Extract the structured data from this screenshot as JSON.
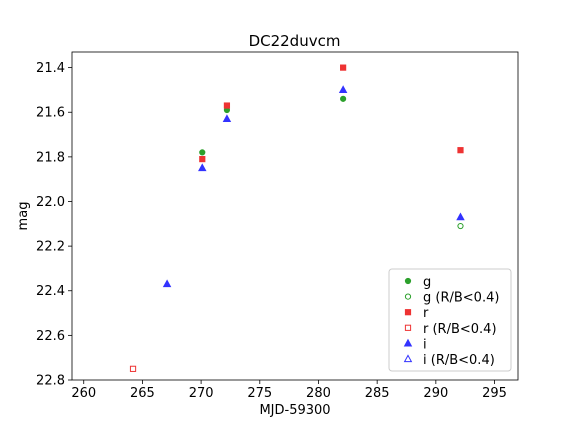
{
  "chart_data": {
    "type": "scatter",
    "title": "DC22duvcm",
    "xlabel": "MJD-59300",
    "ylabel": "mag",
    "xlim": [
      259,
      297
    ],
    "ylim": [
      22.8,
      21.33
    ],
    "y_inverted": true,
    "xticks": [
      260,
      265,
      270,
      275,
      280,
      285,
      290,
      295
    ],
    "yticks": [
      21.4,
      21.6,
      21.8,
      22.0,
      22.2,
      22.4,
      22.6,
      22.8
    ],
    "xtick_labels": [
      "260",
      "265",
      "270",
      "275",
      "280",
      "285",
      "290",
      "295"
    ],
    "ytick_labels": [
      "21.4",
      "21.6",
      "21.8",
      "22.0",
      "22.2",
      "22.4",
      "22.6",
      "22.8"
    ],
    "grid": false,
    "legend_position": "bottom-right",
    "series": [
      {
        "name": "g",
        "marker": "circle",
        "filled": true,
        "color": "#2ca02c",
        "points": [
          [
            270.1,
            21.78
          ],
          [
            272.2,
            21.59
          ],
          [
            282.1,
            21.54
          ]
        ]
      },
      {
        "name": "g (R/B<0.4)",
        "marker": "circle",
        "filled": false,
        "color": "#2ca02c",
        "points": [
          [
            292.1,
            22.11
          ]
        ]
      },
      {
        "name": "r",
        "marker": "square",
        "filled": true,
        "color": "#ee3333",
        "points": [
          [
            270.1,
            21.81
          ],
          [
            272.2,
            21.57
          ],
          [
            282.1,
            21.4
          ],
          [
            292.1,
            21.77
          ]
        ]
      },
      {
        "name": "r (R/B<0.4)",
        "marker": "square",
        "filled": false,
        "color": "#ee3333",
        "points": [
          [
            264.2,
            22.75
          ]
        ]
      },
      {
        "name": "i",
        "marker": "triangle",
        "filled": true,
        "color": "#3333ff",
        "points": [
          [
            267.1,
            22.37
          ],
          [
            270.1,
            21.85
          ],
          [
            272.2,
            21.63
          ],
          [
            282.1,
            21.5
          ],
          [
            292.1,
            22.07
          ]
        ]
      },
      {
        "name": "i (R/B<0.4)",
        "marker": "triangle",
        "filled": false,
        "color": "#3333ff",
        "points": []
      }
    ]
  }
}
